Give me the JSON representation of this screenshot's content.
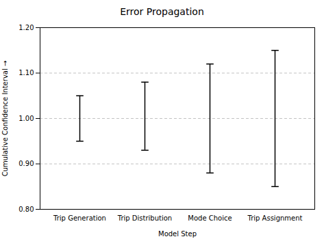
{
  "chart_data": {
    "type": "errorbar",
    "title": "Error Propagation",
    "xlabel": "Model Step",
    "ylabel": "Cumulative Confidence Interval",
    "categories": [
      "Trip Generation",
      "Trip Distribution",
      "Mode Choice",
      "Trip Assignment"
    ],
    "values": [
      1.0,
      1.0,
      1.0,
      1.0
    ],
    "upper_errors": [
      0.05,
      0.08,
      0.12,
      0.15
    ],
    "lower_errors": [
      0.05,
      0.07,
      0.12,
      0.15
    ],
    "color": "#000000",
    "ylim": [
      0.8,
      1.2
    ],
    "yticks": [
      {
        "value": 0.8,
        "label": "0.80"
      },
      {
        "value": 0.9,
        "label": "0.90"
      },
      {
        "value": 1.0,
        "label": "1.00"
      },
      {
        "value": 1.1,
        "label": "1.10"
      },
      {
        "value": 1.2,
        "label": "1.20"
      }
    ],
    "grid": true
  }
}
